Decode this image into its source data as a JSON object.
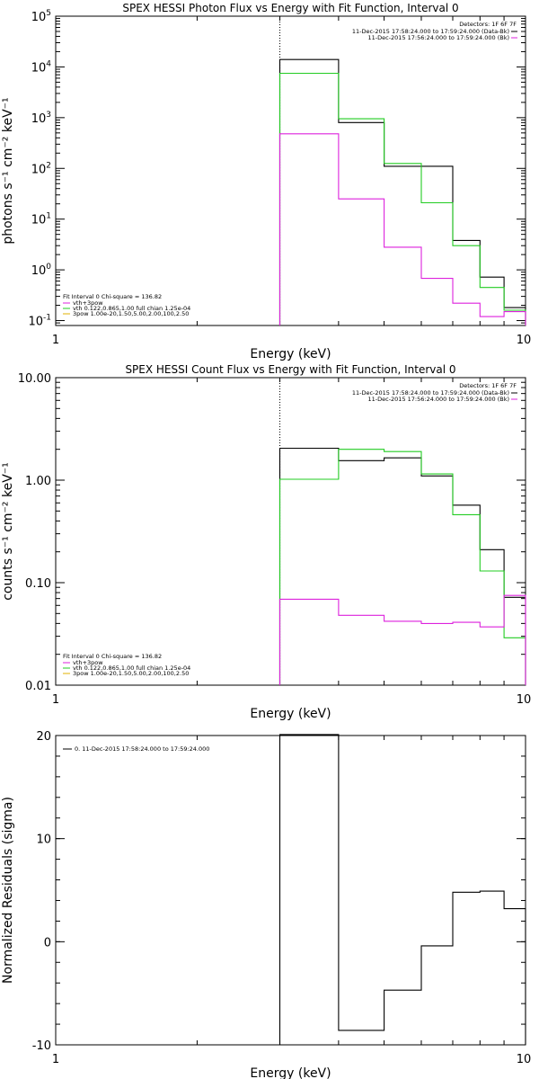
{
  "colors": {
    "black": "#000000",
    "green": "#22cc22",
    "magenta": "#dd22dd",
    "orange": "#e0b000"
  },
  "chart_data": [
    {
      "type": "line",
      "title": "SPEX HESSI Photon Flux vs Energy with Fit Function, Interval 0",
      "xlabel": "Energy (keV)",
      "ylabel": "photons s⁻¹ cm⁻² keV⁻¹",
      "xscale": "log",
      "yscale": "log",
      "xlim": [
        1,
        10
      ],
      "ylim": [
        0.08,
        100000
      ],
      "xticks": [
        "1",
        "10"
      ],
      "yticks": [
        {
          "v": 0.1,
          "b": "10",
          "e": "-1"
        },
        {
          "v": 1,
          "b": "10",
          "e": "0"
        },
        {
          "v": 10,
          "b": "10",
          "e": "1"
        },
        {
          "v": 100,
          "b": "10",
          "e": "2"
        },
        {
          "v": 1000,
          "b": "10",
          "e": "3"
        },
        {
          "v": 10000,
          "b": "10",
          "e": "4"
        },
        {
          "v": 100000,
          "b": "10",
          "e": "5"
        }
      ],
      "vline_x": 3,
      "edges": [
        3,
        4,
        5,
        6,
        7,
        8,
        9,
        10
      ],
      "series": [
        {
          "color": "black",
          "values": [
            14000,
            800,
            110,
            110,
            3.8,
            0.72,
            0.18
          ]
        },
        {
          "color": "green",
          "values": [
            7500,
            950,
            125,
            21,
            3.0,
            0.45,
            0.16
          ]
        },
        {
          "color": "magenta",
          "values": [
            480,
            25,
            2.8,
            0.68,
            0.22,
            0.12,
            0.15
          ]
        }
      ],
      "legend_right": {
        "header": "Detectors: 1F 6F 7F",
        "entries": [
          {
            "label": "11-Dec-2015 17:58:24.000 to 17:59:24.000 (Data-Bk)",
            "color": "black"
          },
          {
            "label": "11-Dec-2015 17:56:24.000 to 17:59:24.000 (Bk)",
            "color": "magenta"
          }
        ]
      },
      "legend_left": {
        "header": "Fit Interval 0   Chi-square = 136.82",
        "entries": [
          {
            "label": "vth+3pow",
            "color": "magenta"
          },
          {
            "label": "vth 0.122,0.865,1.00  full chian 1.25e-04",
            "color": "green"
          },
          {
            "label": "3pow 1.00e-20,1.50,5.00,2.00,100,2.50",
            "color": "orange"
          }
        ]
      }
    },
    {
      "type": "line",
      "title": "SPEX HESSI Count Flux vs Energy with Fit Function, Interval 0",
      "xlabel": "Energy (keV)",
      "ylabel": "counts s⁻¹ cm⁻² keV⁻¹",
      "xscale": "log",
      "yscale": "log",
      "xlim": [
        1,
        10
      ],
      "ylim": [
        0.01,
        10
      ],
      "xticks": [
        "1",
        "10"
      ],
      "yticks": [
        {
          "v": 0.01,
          "t": "0.01"
        },
        {
          "v": 0.1,
          "t": "0.10"
        },
        {
          "v": 1,
          "t": "1.00"
        },
        {
          "v": 10,
          "t": "10.00"
        }
      ],
      "vline_x": 3,
      "edges": [
        3,
        4,
        5,
        6,
        7,
        8,
        9,
        10
      ],
      "series": [
        {
          "color": "black",
          "values": [
            2.05,
            1.55,
            1.65,
            1.1,
            0.57,
            0.21,
            0.072
          ]
        },
        {
          "color": "green",
          "values": [
            1.02,
            2.0,
            1.9,
            1.15,
            0.46,
            0.13,
            0.029
          ]
        },
        {
          "color": "magenta",
          "values": [
            0.069,
            0.048,
            0.042,
            0.04,
            0.041,
            0.037,
            0.075
          ]
        }
      ],
      "legend_right": {
        "header": "Detectors: 1F 6F 7F",
        "entries": [
          {
            "label": "11-Dec-2015 17:58:24.000 to 17:59:24.000 (Data-Bk)",
            "color": "black"
          },
          {
            "label": "11-Dec-2015 17:56:24.000 to 17:59:24.000 (Bk)",
            "color": "magenta"
          }
        ]
      },
      "legend_left": {
        "header": "Fit Interval 0   Chi-square = 136.82",
        "entries": [
          {
            "label": "vth+3pow",
            "color": "magenta"
          },
          {
            "label": "vth 0.122,0.865,1.00  full chian 1.25e-04",
            "color": "green"
          },
          {
            "label": "3pow 1.00e-20,1.50,5.00,2.00,100,2.50",
            "color": "orange"
          }
        ]
      }
    },
    {
      "type": "line",
      "title": "",
      "xlabel": "Energy (keV)",
      "ylabel": "Normalized Residuals (sigma)",
      "xscale": "log",
      "yscale": "linear",
      "xlim": [
        1,
        10
      ],
      "ylim": [
        -10,
        20
      ],
      "xticks": [
        "1",
        "10"
      ],
      "yticks": [
        {
          "v": -10,
          "t": "-10"
        },
        {
          "v": 0,
          "t": "0"
        },
        {
          "v": 10,
          "t": "10"
        },
        {
          "v": 20,
          "t": "20"
        }
      ],
      "edges": [
        3,
        4,
        5,
        6,
        7,
        8,
        9,
        10
      ],
      "series": [
        {
          "color": "black",
          "values": [
            20.1,
            -8.6,
            -4.7,
            -0.4,
            4.8,
            4.9,
            3.2
          ]
        }
      ],
      "legend_left": {
        "entries": [
          {
            "label": "0. 11-Dec-2015 17:58:24.000 to 17:59:24.000",
            "color": "black"
          }
        ]
      }
    }
  ]
}
